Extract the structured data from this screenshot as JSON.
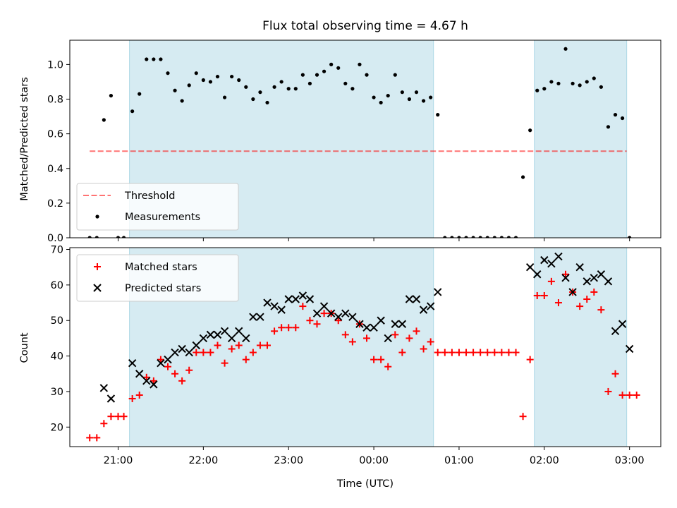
{
  "chart_data": [
    {
      "type": "scatter",
      "title": "Flux total observing time = 4.67 h",
      "xlabel": "",
      "ylabel": "Matched/Predicted stars",
      "xlim": [
        "20:26",
        "03:22"
      ],
      "ylim": [
        0,
        1.14
      ],
      "y_ticks": [
        "0.0",
        "0.2",
        "0.4",
        "0.6",
        "0.8",
        "1.0"
      ],
      "grid": false,
      "legend_position": "lower-left",
      "shaded_intervals": [
        [
          "21:08",
          "00:42"
        ],
        [
          "01:53",
          "02:58"
        ]
      ],
      "threshold": {
        "name": "Threshold",
        "value": 0.5,
        "x_range": [
          "20:40",
          "02:58"
        ]
      },
      "series": [
        {
          "name": "Measurements",
          "x": [
            "20:40",
            "20:45",
            "20:50",
            "20:55",
            "21:00",
            "21:04",
            "21:10",
            "21:15",
            "21:20",
            "21:25",
            "21:30",
            "21:35",
            "21:40",
            "21:45",
            "21:50",
            "21:55",
            "22:00",
            "22:05",
            "22:10",
            "22:15",
            "22:20",
            "22:25",
            "22:30",
            "22:35",
            "22:40",
            "22:45",
            "22:50",
            "22:55",
            "23:00",
            "23:05",
            "23:10",
            "23:15",
            "23:20",
            "23:25",
            "23:30",
            "23:35",
            "23:40",
            "23:45",
            "23:50",
            "23:55",
            "00:00",
            "00:05",
            "00:10",
            "00:15",
            "00:20",
            "00:25",
            "00:30",
            "00:35",
            "00:40",
            "00:45",
            "00:50",
            "00:55",
            "01:00",
            "01:05",
            "01:10",
            "01:15",
            "01:20",
            "01:25",
            "01:30",
            "01:35",
            "01:40",
            "01:45",
            "01:50",
            "01:55",
            "02:00",
            "02:05",
            "02:10",
            "02:15",
            "02:20",
            "02:25",
            "02:30",
            "02:35",
            "02:40",
            "02:45",
            "02:50",
            "02:55",
            "03:00"
          ],
          "y": [
            0,
            0,
            0.68,
            0.82,
            0,
            0,
            0.73,
            0.83,
            1.03,
            1.03,
            1.03,
            0.95,
            0.85,
            0.79,
            0.88,
            0.95,
            0.91,
            0.9,
            0.93,
            0.81,
            0.93,
            0.91,
            0.87,
            0.8,
            0.84,
            0.78,
            0.87,
            0.9,
            0.86,
            0.86,
            0.94,
            0.89,
            0.94,
            0.96,
            1.0,
            0.98,
            0.89,
            0.86,
            1.0,
            0.94,
            0.81,
            0.78,
            0.82,
            0.94,
            0.84,
            0.8,
            0.84,
            0.79,
            0.81,
            0.71,
            0,
            0,
            0,
            0,
            0,
            0,
            0,
            0,
            0,
            0,
            0,
            0.35,
            0.62,
            0.85,
            0.86,
            0.9,
            0.89,
            1.09,
            0.89,
            0.88,
            0.9,
            0.92,
            0.87,
            0.64,
            0.71,
            0.69,
            0
          ]
        }
      ]
    },
    {
      "type": "scatter",
      "title": "",
      "xlabel": "Time (UTC)",
      "ylabel": "Count",
      "xlim": [
        "20:26",
        "03:22"
      ],
      "ylim": [
        14.5,
        70.5
      ],
      "y_ticks": [
        "20",
        "30",
        "40",
        "50",
        "60",
        "70"
      ],
      "x_ticks": [
        "21:00",
        "22:00",
        "23:00",
        "00:00",
        "01:00",
        "02:00",
        "03:00"
      ],
      "grid": false,
      "legend_position": "upper-left",
      "shaded_intervals": [
        [
          "21:08",
          "00:42"
        ],
        [
          "01:53",
          "02:58"
        ]
      ],
      "series": [
        {
          "name": "Matched stars",
          "marker": "plus",
          "color": "#ff0000",
          "x": [
            "20:40",
            "20:45",
            "20:50",
            "20:55",
            "21:00",
            "21:04",
            "21:10",
            "21:15",
            "21:20",
            "21:25",
            "21:30",
            "21:35",
            "21:40",
            "21:45",
            "21:50",
            "21:55",
            "22:00",
            "22:05",
            "22:10",
            "22:15",
            "22:20",
            "22:25",
            "22:30",
            "22:35",
            "22:40",
            "22:45",
            "22:50",
            "22:55",
            "23:00",
            "23:05",
            "23:10",
            "23:15",
            "23:20",
            "23:25",
            "23:30",
            "23:35",
            "23:40",
            "23:45",
            "23:50",
            "23:55",
            "00:00",
            "00:05",
            "00:10",
            "00:15",
            "00:20",
            "00:25",
            "00:30",
            "00:35",
            "00:40",
            "00:45",
            "00:50",
            "00:55",
            "01:00",
            "01:05",
            "01:10",
            "01:15",
            "01:20",
            "01:25",
            "01:30",
            "01:35",
            "01:40",
            "01:45",
            "01:50",
            "01:55",
            "02:00",
            "02:05",
            "02:10",
            "02:15",
            "02:20",
            "02:25",
            "02:30",
            "02:35",
            "02:40",
            "02:45",
            "02:50",
            "02:55",
            "03:00",
            "03:05"
          ],
          "y": [
            17,
            17,
            21,
            23,
            23,
            23,
            28,
            29,
            34,
            33,
            39,
            37,
            35,
            33,
            36,
            41,
            41,
            41,
            43,
            38,
            42,
            43,
            39,
            41,
            43,
            43,
            47,
            48,
            48,
            48,
            54,
            50,
            49,
            52,
            52,
            50,
            46,
            44,
            49,
            45,
            39,
            39,
            37,
            46,
            41,
            45,
            47,
            42,
            44,
            41,
            41,
            41,
            41,
            41,
            41,
            41,
            41,
            41,
            41,
            41,
            41,
            23,
            39,
            57,
            57,
            61,
            55,
            63,
            58,
            54,
            56,
            58,
            53,
            30,
            35,
            29,
            29,
            29
          ]
        },
        {
          "name": "Predicted stars",
          "marker": "x",
          "color": "#000000",
          "x": [
            "20:50",
            "20:55",
            "21:10",
            "21:15",
            "21:20",
            "21:25",
            "21:30",
            "21:35",
            "21:40",
            "21:45",
            "21:50",
            "21:55",
            "22:00",
            "22:05",
            "22:10",
            "22:15",
            "22:20",
            "22:25",
            "22:30",
            "22:35",
            "22:40",
            "22:45",
            "22:50",
            "22:55",
            "23:00",
            "23:05",
            "23:10",
            "23:15",
            "23:20",
            "23:25",
            "23:30",
            "23:35",
            "23:40",
            "23:45",
            "23:50",
            "23:55",
            "00:00",
            "00:05",
            "00:10",
            "00:15",
            "00:20",
            "00:25",
            "00:30",
            "00:35",
            "00:40",
            "00:45",
            "01:50",
            "01:55",
            "02:00",
            "02:05",
            "02:10",
            "02:15",
            "02:20",
            "02:25",
            "02:30",
            "02:35",
            "02:40",
            "02:45",
            "02:50",
            "02:55",
            "03:00"
          ],
          "y": [
            31,
            28,
            38,
            35,
            33,
            32,
            38,
            39,
            41,
            42,
            41,
            43,
            45,
            46,
            46,
            47,
            45,
            47,
            45,
            51,
            51,
            55,
            54,
            53,
            56,
            56,
            57,
            56,
            52,
            54,
            52,
            51,
            52,
            51,
            49,
            48,
            48,
            50,
            45,
            49,
            49,
            56,
            56,
            53,
            54,
            58,
            65,
            63,
            67,
            66,
            68,
            62,
            58,
            65,
            61,
            62,
            63,
            61,
            47,
            49,
            42
          ]
        }
      ]
    }
  ]
}
